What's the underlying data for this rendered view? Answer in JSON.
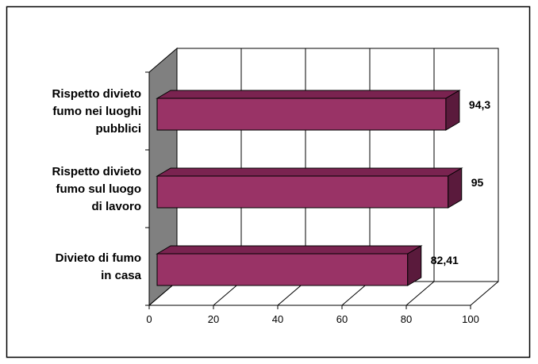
{
  "chart_data": {
    "type": "bar",
    "orientation": "horizontal",
    "style": "3d",
    "categories": [
      [
        "Rispetto divieto",
        "fumo nei luoghi",
        "pubblici"
      ],
      [
        "Rispetto divieto",
        "fumo sul luogo",
        "di lavoro"
      ],
      [
        "Divieto di fumo",
        "in casa"
      ]
    ],
    "values": [
      94.3,
      95,
      82.41
    ],
    "data_labels": [
      "94,3",
      "95",
      "82,41"
    ],
    "xlim": [
      0,
      100
    ],
    "xticks": [
      0,
      20,
      40,
      60,
      80,
      100
    ],
    "grid": true,
    "legend": "none",
    "colors": {
      "bar_front": "#993366",
      "bar_top": "#7a2350",
      "bar_side": "#5a1a3c",
      "left_wall": "#808080",
      "grid": "#000000"
    }
  }
}
